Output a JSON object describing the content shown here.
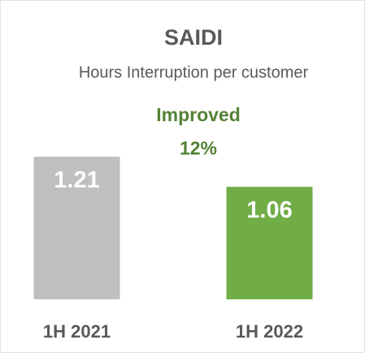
{
  "chart_data": {
    "type": "bar",
    "title": "SAIDI",
    "subtitle": "Hours Interruption per customer",
    "annotation": [
      "Improved",
      "12%"
    ],
    "categories": [
      "1H 2021",
      "1H 2022"
    ],
    "values": [
      1.21,
      1.06
    ],
    "colors": [
      "#bfbfbf",
      "#70ad47"
    ],
    "ylim": [
      0.5,
      1.5
    ],
    "grid": false
  }
}
